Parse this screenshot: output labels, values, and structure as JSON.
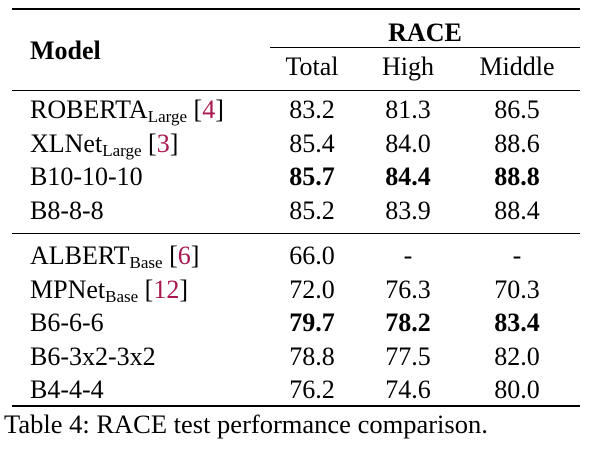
{
  "table": {
    "header": {
      "model": "Model",
      "group": "RACE",
      "columns": [
        "Total",
        "High",
        "Middle"
      ]
    },
    "sections": [
      {
        "rows": [
          {
            "model": "ROBERTA",
            "sub": "Large",
            "cite": "4",
            "values": [
              "83.2",
              "81.3",
              "86.5"
            ],
            "bold": [
              false,
              false,
              false
            ]
          },
          {
            "model": "XLNet",
            "sub": "Large",
            "cite": "3",
            "values": [
              "85.4",
              "84.0",
              "88.6"
            ],
            "bold": [
              false,
              false,
              false
            ]
          },
          {
            "model": "B10-10-10",
            "sub": "",
            "cite": "",
            "values": [
              "85.7",
              "84.4",
              "88.8"
            ],
            "bold": [
              true,
              true,
              true
            ]
          },
          {
            "model": "B8-8-8",
            "sub": "",
            "cite": "",
            "values": [
              "85.2",
              "83.9",
              "88.4"
            ],
            "bold": [
              false,
              false,
              false
            ]
          }
        ]
      },
      {
        "rows": [
          {
            "model": "ALBERT",
            "sub": "Base",
            "cite": "6",
            "values": [
              "66.0",
              "-",
              "-"
            ],
            "bold": [
              false,
              false,
              false
            ]
          },
          {
            "model": "MPNet",
            "sub": "Base",
            "cite": "12",
            "values": [
              "72.0",
              "76.3",
              "70.3"
            ],
            "bold": [
              false,
              false,
              false
            ]
          },
          {
            "model": "B6-6-6",
            "sub": "",
            "cite": "",
            "values": [
              "79.7",
              "78.2",
              "83.4"
            ],
            "bold": [
              true,
              true,
              true
            ]
          },
          {
            "model": "B6-3x2-3x2",
            "sub": "",
            "cite": "",
            "values": [
              "78.8",
              "77.5",
              "82.0"
            ],
            "bold": [
              false,
              false,
              false
            ]
          },
          {
            "model": "B4-4-4",
            "sub": "",
            "cite": "",
            "values": [
              "76.2",
              "74.6",
              "80.0"
            ],
            "bold": [
              false,
              false,
              false
            ]
          }
        ]
      }
    ]
  },
  "caption": "Table 4: RACE test performance comparison."
}
